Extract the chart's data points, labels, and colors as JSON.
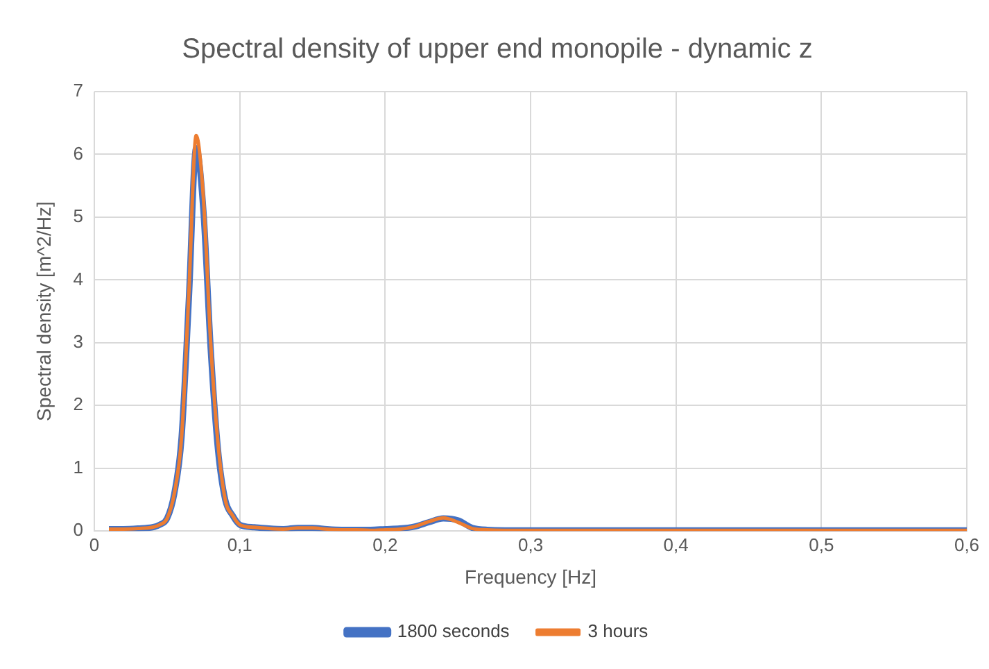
{
  "chart_data": {
    "type": "line",
    "title": "Spectral density of upper end monopile - dynamic z",
    "xlabel": "Frequency [Hz]",
    "ylabel": "Spectral density [m^2/Hz]",
    "xlim": [
      0,
      0.6
    ],
    "xticks": [
      {
        "value": 0,
        "label": "0"
      },
      {
        "value": 0.1,
        "label": "0,1"
      },
      {
        "value": 0.2,
        "label": "0,2"
      },
      {
        "value": 0.3,
        "label": "0,3"
      },
      {
        "value": 0.4,
        "label": "0,4"
      },
      {
        "value": 0.5,
        "label": "0,5"
      },
      {
        "value": 0.6,
        "label": "0,6"
      }
    ],
    "ylim": [
      0,
      7
    ],
    "yticks": [
      0,
      1,
      2,
      3,
      4,
      5,
      6,
      7
    ],
    "grid": true,
    "legend": "bottom",
    "marker": "none",
    "line_style": "solid",
    "x": [
      0.01,
      0.02,
      0.03,
      0.04,
      0.045,
      0.05,
      0.055,
      0.06,
      0.065,
      0.07,
      0.075,
      0.08,
      0.085,
      0.09,
      0.095,
      0.1,
      0.11,
      0.12,
      0.13,
      0.14,
      0.15,
      0.16,
      0.17,
      0.18,
      0.19,
      0.2,
      0.21,
      0.22,
      0.23,
      0.24,
      0.25,
      0.26,
      0.27,
      0.3,
      0.4,
      0.5,
      0.6
    ],
    "series": [
      {
        "name": "1800 seconds",
        "color": "#4472c4",
        "values": [
          0.03,
          0.03,
          0.04,
          0.06,
          0.1,
          0.2,
          0.6,
          1.5,
          3.7,
          6.1,
          5.1,
          2.9,
          1.3,
          0.5,
          0.25,
          0.1,
          0.06,
          0.04,
          0.03,
          0.05,
          0.05,
          0.03,
          0.02,
          0.02,
          0.02,
          0.03,
          0.04,
          0.07,
          0.14,
          0.2,
          0.17,
          0.05,
          0.02,
          0.01,
          0.01,
          0.01,
          0.01
        ]
      },
      {
        "name": "3 hours",
        "color": "#ed7d31",
        "values": [
          0.03,
          0.03,
          0.04,
          0.06,
          0.1,
          0.2,
          0.6,
          1.5,
          3.8,
          6.3,
          5.3,
          3.0,
          1.4,
          0.5,
          0.25,
          0.1,
          0.06,
          0.04,
          0.03,
          0.05,
          0.05,
          0.03,
          0.02,
          0.02,
          0.01,
          0.02,
          0.03,
          0.07,
          0.15,
          0.21,
          0.14,
          0.04,
          0.02,
          0.01,
          0.01,
          0.01,
          0.01
        ]
      }
    ]
  }
}
